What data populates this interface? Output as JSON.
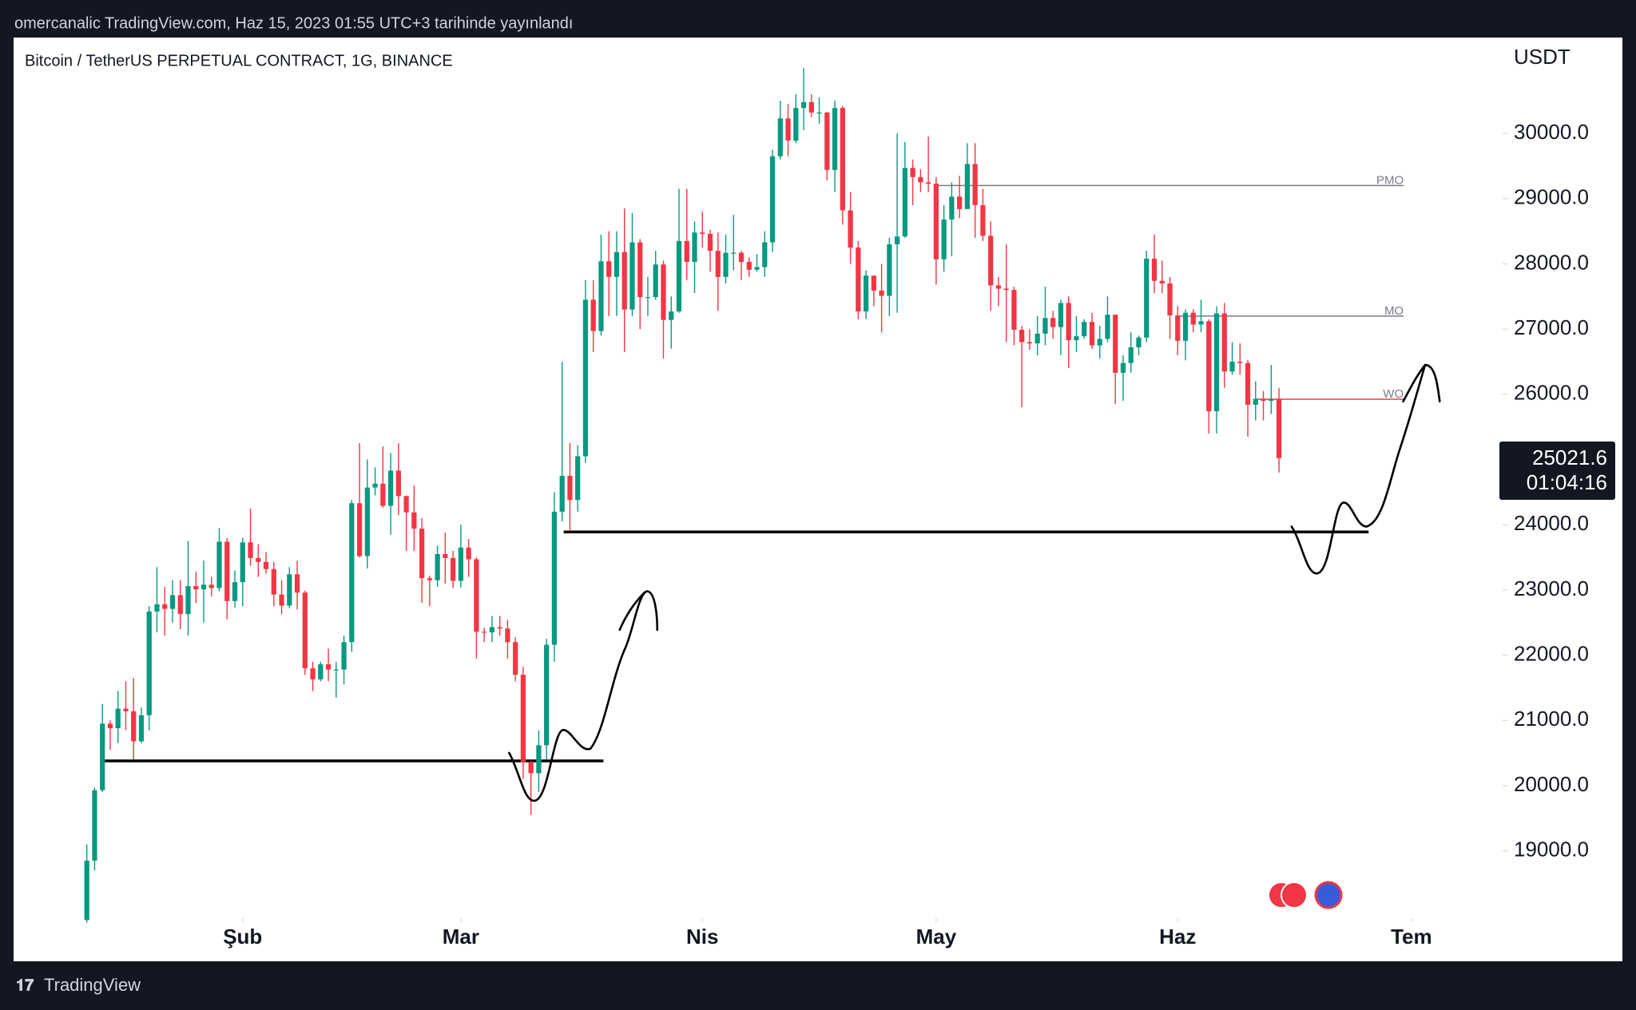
{
  "header": {
    "text": "omercanalic TradingView.com, Haz 15, 2023 01:55 UTC+3 tarihinde yayınlandı"
  },
  "footer": {
    "brand": "TradingView"
  },
  "chart_data": {
    "type": "candlestick",
    "title": "Bitcoin / TetherUS PERPETUAL CONTRACT, 1G, BINANCE",
    "currency": "USDT",
    "countdown": "01:04:16",
    "up_color": "#089981",
    "down_color": "#f23645",
    "grid": false,
    "open": [
      17940,
      18850,
      19930,
      20950,
      20880,
      21180,
      21140,
      20680,
      21080,
      22670,
      22780,
      22710,
      22920,
      22630,
      23060,
      23010,
      23080,
      23030,
      23740,
      22830,
      23120,
      23730,
      23490,
      23430,
      23320,
      22930,
      22760,
      23240,
      22960,
      21800,
      21630,
      21860,
      21780,
      21780,
      22200,
      24330,
      23520,
      24570,
      24630,
      24290,
      24830,
      24440,
      24190,
      23940,
      23180,
      23150,
      23550,
      23490,
      23140,
      23650,
      23470,
      22360,
      22350,
      22430,
      22410,
      22200,
      21700,
      20360,
      20190,
      20620,
      22160,
      24200,
      24750,
      24380,
      25050,
      27450,
      26970,
      28040,
      27800,
      28180,
      27300,
      28330,
      27490,
      27490,
      27990,
      27140,
      27270,
      28350,
      28030,
      28480,
      28460,
      28200,
      27800,
      28170,
      28170,
      28030,
      27910,
      27950,
      28330,
      29650,
      30230,
      29890,
      30390,
      30480,
      30320,
      30320,
      29440,
      30390,
      28820,
      28250,
      27270,
      27820,
      27590,
      27510,
      28300,
      28420,
      29470,
      29330,
      29250,
      29230,
      28070,
      28680,
      29030,
      28840,
      29530,
      28900,
      28430,
      27670,
      27620,
      27600,
      26990,
      26800,
      26780,
      26930,
      27170,
      27030,
      27400,
      26830,
      26890,
      27110,
      26750,
      26850,
      27220,
      26330,
      26480,
      26720,
      26870,
      28080,
      27740,
      27700,
      27210,
      26820,
      27250,
      27070,
      27120,
      25740,
      27240,
      26350,
      26500,
      26480,
      25840,
      25930,
      25900,
      25920
    ],
    "high": [
      19100,
      19970,
      21250,
      21000,
      21450,
      21600,
      21650,
      21200,
      22750,
      23350,
      23050,
      23150,
      23150,
      23750,
      23280,
      23450,
      23200,
      23950,
      23800,
      23300,
      23800,
      24250,
      23700,
      23580,
      23430,
      23150,
      23350,
      23450,
      22990,
      21900,
      21900,
      22100,
      21900,
      22300,
      24380,
      25250,
      25000,
      24880,
      25200,
      25100,
      25250,
      24450,
      24600,
      24100,
      23220,
      23680,
      23880,
      23600,
      24000,
      23780,
      23500,
      22420,
      22600,
      22600,
      22540,
      22270,
      21820,
      20380,
      20850,
      22250,
      24500,
      26500,
      25250,
      25220,
      27750,
      27750,
      28450,
      28500,
      28500,
      28850,
      28780,
      28380,
      27800,
      28200,
      28050,
      27500,
      29150,
      29150,
      28650,
      28800,
      28520,
      28480,
      28450,
      28750,
      28200,
      28100,
      28150,
      28500,
      29750,
      30500,
      30450,
      30600,
      31000,
      30600,
      30550,
      30330,
      30500,
      30420,
      29100,
      28350,
      27900,
      27820,
      28000,
      28400,
      30000,
      29870,
      29600,
      29450,
      29950,
      29330,
      28900,
      29250,
      29350,
      29850,
      29850,
      29150,
      28650,
      27800,
      28300,
      27650,
      27050,
      27000,
      27200,
      27650,
      27280,
      27450,
      27500,
      27200,
      27150,
      27250,
      27050,
      27500,
      27220,
      26600,
      26950,
      26900,
      28200,
      28450,
      28050,
      27800,
      27350,
      27300,
      27300,
      27450,
      27150,
      27350,
      27400,
      26800,
      26780,
      26530,
      26200,
      26050,
      26450,
      26100
    ],
    "low": [
      17900,
      18700,
      19900,
      20550,
      20650,
      20850,
      20400,
      20650,
      20850,
      22350,
      22300,
      22500,
      22400,
      22300,
      22800,
      22500,
      22900,
      22980,
      22550,
      22730,
      22750,
      23370,
      23200,
      23250,
      22750,
      22630,
      22720,
      22700,
      21700,
      21450,
      21600,
      21600,
      21350,
      21550,
      22050,
      23500,
      23330,
      24450,
      24260,
      23850,
      24150,
      23600,
      23600,
      22800,
      22750,
      23050,
      23100,
      23030,
      23040,
      23200,
      21950,
      22200,
      22200,
      22300,
      21950,
      21600,
      20100,
      19550,
      19900,
      20400,
      21900,
      24050,
      23900,
      24200,
      24950,
      26650,
      26900,
      27200,
      27200,
      26650,
      27200,
      27000,
      27200,
      27450,
      26550,
      26700,
      27250,
      27750,
      27550,
      28250,
      27880,
      27280,
      27700,
      27900,
      27750,
      27800,
      27880,
      27800,
      28180,
      29600,
      29650,
      29850,
      30050,
      30250,
      30150,
      29280,
      29100,
      28600,
      28000,
      27150,
      27150,
      27350,
      26950,
      27200,
      27250,
      28400,
      28900,
      29100,
      29100,
      27680,
      27880,
      28120,
      28700,
      28850,
      28400,
      28350,
      27280,
      27350,
      26800,
      26750,
      25800,
      26680,
      26600,
      26750,
      26850,
      26600,
      26400,
      26650,
      26850,
      26700,
      26550,
      26800,
      25850,
      25900,
      26330,
      26600,
      26800,
      27550,
      27550,
      26850,
      26600,
      26520,
      26950,
      26950,
      25400,
      25400,
      26100,
      26300,
      26300,
      25350,
      25600,
      25600,
      25700,
      24800
    ],
    "close": [
      18850,
      19930,
      20950,
      20880,
      21180,
      21140,
      20680,
      21080,
      22670,
      22780,
      22710,
      22920,
      22630,
      23060,
      23010,
      23080,
      23030,
      23740,
      22830,
      23120,
      23730,
      23490,
      23430,
      23320,
      22930,
      22760,
      23240,
      22960,
      21800,
      21630,
      21860,
      21780,
      21780,
      22200,
      24330,
      23520,
      24570,
      24630,
      24290,
      24830,
      24440,
      24190,
      23940,
      23180,
      23150,
      23550,
      23490,
      23140,
      23650,
      23470,
      22360,
      22350,
      22430,
      22410,
      22200,
      21700,
      20360,
      20190,
      20620,
      22160,
      24200,
      24750,
      24380,
      25050,
      27450,
      26970,
      28040,
      27800,
      28180,
      27300,
      28330,
      27490,
      27490,
      27990,
      27140,
      27270,
      28350,
      28030,
      28480,
      28460,
      28200,
      27800,
      28170,
      28170,
      28030,
      27910,
      27950,
      28330,
      29650,
      30230,
      29890,
      30390,
      30480,
      30320,
      30320,
      29440,
      30390,
      28820,
      28250,
      27270,
      27820,
      27590,
      27510,
      28300,
      28420,
      29470,
      29330,
      29250,
      29230,
      28070,
      28680,
      29030,
      28840,
      29530,
      28900,
      28430,
      27670,
      27620,
      27600,
      26990,
      26800,
      26780,
      26930,
      27170,
      27030,
      27400,
      26830,
      26890,
      27110,
      26750,
      26850,
      27220,
      26330,
      26480,
      26720,
      26870,
      28080,
      27740,
      27700,
      27210,
      26820,
      27250,
      27070,
      27120,
      25740,
      27240,
      26350,
      26500,
      26480,
      25840,
      25930,
      25900,
      25920,
      25021.6
    ],
    "xlim": [
      -9.4,
      181.7
    ],
    "xticks": [
      {
        "value": 20,
        "label": "Şub"
      },
      {
        "value": 48,
        "label": "Mar"
      },
      {
        "value": 79,
        "label": "Nis"
      },
      {
        "value": 109,
        "label": "May"
      },
      {
        "value": 140,
        "label": "Haz"
      },
      {
        "value": 170,
        "label": "Tem"
      }
    ],
    "ylim": [
      17980,
      31470
    ],
    "yticks": [
      {
        "value": 19000,
        "label": "19000.0"
      },
      {
        "value": 20000,
        "label": "20000.0"
      },
      {
        "value": 21000,
        "label": "21000.0"
      },
      {
        "value": 22000,
        "label": "22000.0"
      },
      {
        "value": 23000,
        "label": "23000.0"
      },
      {
        "value": 24000,
        "label": "24000.0"
      },
      {
        "value": 25000,
        "label": "25000.0"
      },
      {
        "value": 26000,
        "label": "26000.0"
      },
      {
        "value": 27000,
        "label": "27000.0"
      },
      {
        "value": 28000,
        "label": "28000.0"
      },
      {
        "value": 29000,
        "label": "29000.0"
      },
      {
        "value": 30000,
        "label": "30000.0"
      }
    ],
    "levels": [
      {
        "value": 20380,
        "from": 2.3,
        "to": 66.3,
        "color": "#000000"
      },
      {
        "value": 23890,
        "from": 61.2,
        "to": 164.5,
        "color": "#000000"
      },
      {
        "value": 29200,
        "from": 109,
        "to": 169,
        "color": "#787b86",
        "label": "PMO"
      },
      {
        "value": 27200,
        "from": 140,
        "to": 169,
        "color": "#787b86",
        "label": "MO"
      },
      {
        "value": 25925,
        "from": 150,
        "to": 169,
        "color": "#f23645",
        "label": "WO"
      }
    ]
  }
}
